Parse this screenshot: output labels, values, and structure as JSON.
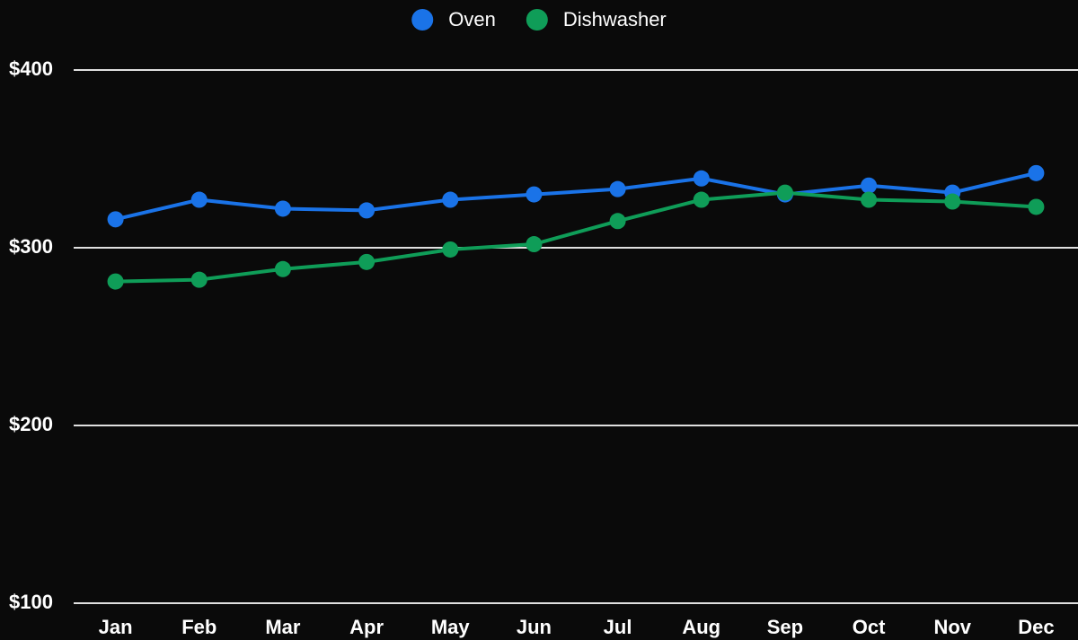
{
  "chart_data": {
    "type": "line",
    "categories": [
      "Jan",
      "Feb",
      "Mar",
      "Apr",
      "May",
      "Jun",
      "Jul",
      "Aug",
      "Sep",
      "Oct",
      "Nov",
      "Dec"
    ],
    "series": [
      {
        "name": "Oven",
        "color": "#1a73e8",
        "values": [
          316,
          327,
          322,
          321,
          327,
          330,
          333,
          339,
          330,
          335,
          331,
          342
        ]
      },
      {
        "name": "Dishwasher",
        "color": "#0f9d58",
        "values": [
          281,
          282,
          288,
          292,
          299,
          302,
          315,
          327,
          331,
          327,
          326,
          323
        ]
      }
    ],
    "ylim": [
      100,
      400
    ],
    "yticks": [
      {
        "value": 100,
        "label": "$100"
      },
      {
        "value": 200,
        "label": "$200"
      },
      {
        "value": 300,
        "label": "$300"
      },
      {
        "value": 400,
        "label": "$400"
      }
    ],
    "grid": true,
    "legend": "top"
  }
}
